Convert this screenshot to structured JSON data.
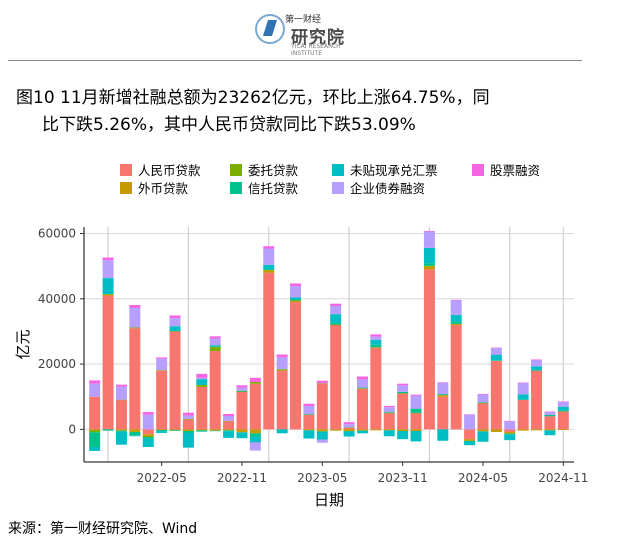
{
  "header": {
    "logo_top_text": "第一财经",
    "logo_main_text": "研究院",
    "logo_sub_text": "YICAI RESEARCH INSTITUTE"
  },
  "title_line1": "图10 11月新增社融总额为23262亿元，环比上涨64.75%，同",
  "title_line2": "比下跌5.26%，其中人民币贷款同比下跌53.09%",
  "source": "来源：第一财经研究院、Wind",
  "legend": [
    {
      "label": "人民币贷款",
      "color": "#f8766d"
    },
    {
      "label": "委托贷款",
      "color": "#7cae00"
    },
    {
      "label": "未贴现承兑汇票",
      "color": "#00bfc4"
    },
    {
      "label": "股票融资",
      "color": "#f564e3"
    },
    {
      "label": "外币贷款",
      "color": "#c49a00"
    },
    {
      "label": "信托贷款",
      "color": "#00c08b"
    },
    {
      "label": "企业债券融资",
      "color": "#b79fff"
    }
  ],
  "chart_data": {
    "type": "bar",
    "stacked": true,
    "xlabel": "日期",
    "ylabel": "亿元",
    "ylim": [
      -10000,
      62000
    ],
    "yticks": [
      0,
      20000,
      40000,
      60000
    ],
    "xtick_labels": [
      "2022-05",
      "2022-11",
      "2023-05",
      "2023-11",
      "2024-05",
      "2024-11"
    ],
    "xtick_months": [
      "2022-05",
      "2022-11",
      "2023-05",
      "2023-11",
      "2024-05",
      "2024-11"
    ],
    "vertical_gridlines_at": [
      "2022-01",
      "2022-07",
      "2023-01",
      "2023-07",
      "2024-01",
      "2024-07",
      "2024-11"
    ],
    "categories": [
      "2021-12",
      "2022-01",
      "2022-02",
      "2022-03",
      "2022-04",
      "2022-05",
      "2022-06",
      "2022-07",
      "2022-08",
      "2022-09",
      "2022-10",
      "2022-11",
      "2022-12",
      "2023-01",
      "2023-02",
      "2023-03",
      "2023-04",
      "2023-05",
      "2023-06",
      "2023-07",
      "2023-08",
      "2023-09",
      "2023-10",
      "2023-11",
      "2023-12",
      "2024-01",
      "2024-02",
      "2024-03",
      "2024-04",
      "2024-05",
      "2024-06",
      "2024-07",
      "2024-08",
      "2024-09",
      "2024-10",
      "2024-11"
    ],
    "series": [
      {
        "name": "人民币贷款",
        "color": "#f8766d",
        "values": [
          10000,
          41000,
          9000,
          31000,
          -1500,
          18000,
          30000,
          3000,
          13000,
          24000,
          2500,
          11500,
          14000,
          48000,
          18000,
          39000,
          4500,
          14000,
          32000,
          500,
          12500,
          25000,
          5000,
          11000,
          5000,
          49000,
          10000,
          32000,
          -3000,
          8000,
          21000,
          -800,
          9000,
          18000,
          4000,
          5500
        ]
      },
      {
        "name": "外币贷款",
        "color": "#c49a00",
        "values": [
          -200,
          300,
          -400,
          -800,
          -700,
          -200,
          -300,
          -500,
          -300,
          -400,
          -300,
          -900,
          -1200,
          700,
          300,
          400,
          -300,
          -600,
          -400,
          -500,
          -400,
          -300,
          -300,
          -500,
          -500,
          1000,
          500,
          300,
          -500,
          -600,
          -800,
          -500,
          -400,
          -300,
          -300,
          -200
        ]
      },
      {
        "name": "委托贷款",
        "color": "#7cae00",
        "values": [
          -700,
          150,
          100,
          200,
          -100,
          150,
          100,
          200,
          600,
          1300,
          100,
          100,
          500,
          200,
          150,
          100,
          50,
          100,
          100,
          100,
          100,
          200,
          100,
          100,
          50,
          100,
          0,
          0,
          -50,
          100,
          0,
          0,
          0,
          0,
          0,
          50
        ]
      },
      {
        "name": "信托贷款",
        "color": "#00c08b",
        "values": [
          -4500,
          -400,
          -300,
          -1000,
          -600,
          -400,
          -200,
          -600,
          -400,
          -100,
          -300,
          200,
          -1000,
          100,
          100,
          300,
          100,
          -200,
          500,
          -200,
          200,
          700,
          200,
          400,
          1300,
          800,
          300,
          700,
          -100,
          200,
          200,
          -200,
          200,
          300,
          400,
          200
        ]
      },
      {
        "name": "未贴现承兑汇票",
        "color": "#00bfc4",
        "values": [
          -1200,
          4900,
          -4000,
          -300,
          -2500,
          -500,
          1500,
          -4500,
          1800,
          500,
          -2000,
          -1800,
          -1800,
          1400,
          -1200,
          600,
          -2500,
          -2300,
          2700,
          -1500,
          -800,
          1500,
          -1800,
          -2500,
          -3200,
          4700,
          -3500,
          2100,
          -1200,
          -3200,
          1700,
          -1800,
          1500,
          1000,
          -1500,
          1200
        ]
      },
      {
        "name": "企业债券融资",
        "color": "#b79fff",
        "values": [
          4000,
          5500,
          4000,
          6000,
          4500,
          3500,
          2500,
          1000,
          400,
          2000,
          1500,
          1000,
          -2500,
          5000,
          3500,
          3500,
          2500,
          -1000,
          2500,
          1000,
          2500,
          1000,
          1500,
          2000,
          4000,
          5000,
          3500,
          4500,
          4500,
          2500,
          2000,
          2500,
          3500,
          2000,
          1000,
          1500
        ]
      },
      {
        "name": "股票融资",
        "color": "#f564e3",
        "values": [
          1000,
          800,
          600,
          900,
          800,
          400,
          800,
          900,
          1200,
          700,
          600,
          700,
          1300,
          700,
          900,
          800,
          700,
          800,
          700,
          600,
          900,
          700,
          400,
          500,
          300,
          200,
          150,
          100,
          100,
          50,
          150,
          100,
          150,
          150,
          100,
          100
        ]
      }
    ]
  }
}
